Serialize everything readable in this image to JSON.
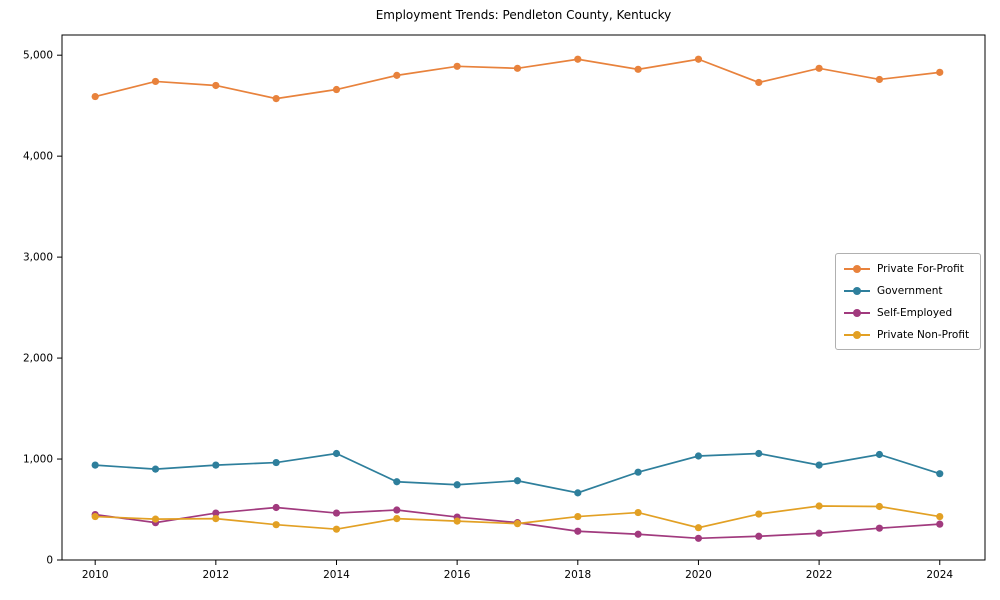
{
  "chart_data": {
    "type": "line",
    "title": "Employment Trends: Pendleton County, Kentucky",
    "xlabel": "",
    "ylabel": "",
    "grid": false,
    "legend_position": "right",
    "xlim": [
      2009.45,
      2024.75
    ],
    "ylim": [
      0,
      5200
    ],
    "x": [
      2010,
      2011,
      2012,
      2013,
      2014,
      2015,
      2016,
      2017,
      2018,
      2019,
      2020,
      2021,
      2022,
      2023,
      2024
    ],
    "x_ticks": [
      2010,
      2012,
      2014,
      2016,
      2018,
      2020,
      2022,
      2024
    ],
    "x_tick_labels": [
      "2010",
      "2012",
      "2014",
      "2016",
      "2018",
      "2020",
      "2022",
      "2024"
    ],
    "y_ticks": [
      0,
      1000,
      2000,
      3000,
      4000,
      5000
    ],
    "y_tick_labels": [
      "0",
      "1,000",
      "2,000",
      "3,000",
      "4,000",
      "5,000"
    ],
    "series": [
      {
        "name": "Private For-Profit",
        "color": "#e8823c",
        "values": [
          4590,
          4740,
          4700,
          4570,
          4660,
          4800,
          4890,
          4870,
          4960,
          4860,
          4960,
          4730,
          4870,
          4760,
          4830
        ]
      },
      {
        "name": "Government",
        "color": "#2e7f9c",
        "values": [
          940,
          900,
          940,
          965,
          1055,
          775,
          745,
          785,
          665,
          870,
          1030,
          1055,
          940,
          1045,
          855
        ]
      },
      {
        "name": "Self-Employed",
        "color": "#a13a7e",
        "values": [
          450,
          370,
          465,
          520,
          465,
          495,
          425,
          370,
          285,
          255,
          215,
          235,
          265,
          315,
          355
        ]
      },
      {
        "name": "Private Non-Profit",
        "color": "#e2a024",
        "values": [
          430,
          405,
          410,
          350,
          305,
          410,
          385,
          360,
          430,
          470,
          320,
          455,
          535,
          530,
          430
        ]
      }
    ]
  }
}
